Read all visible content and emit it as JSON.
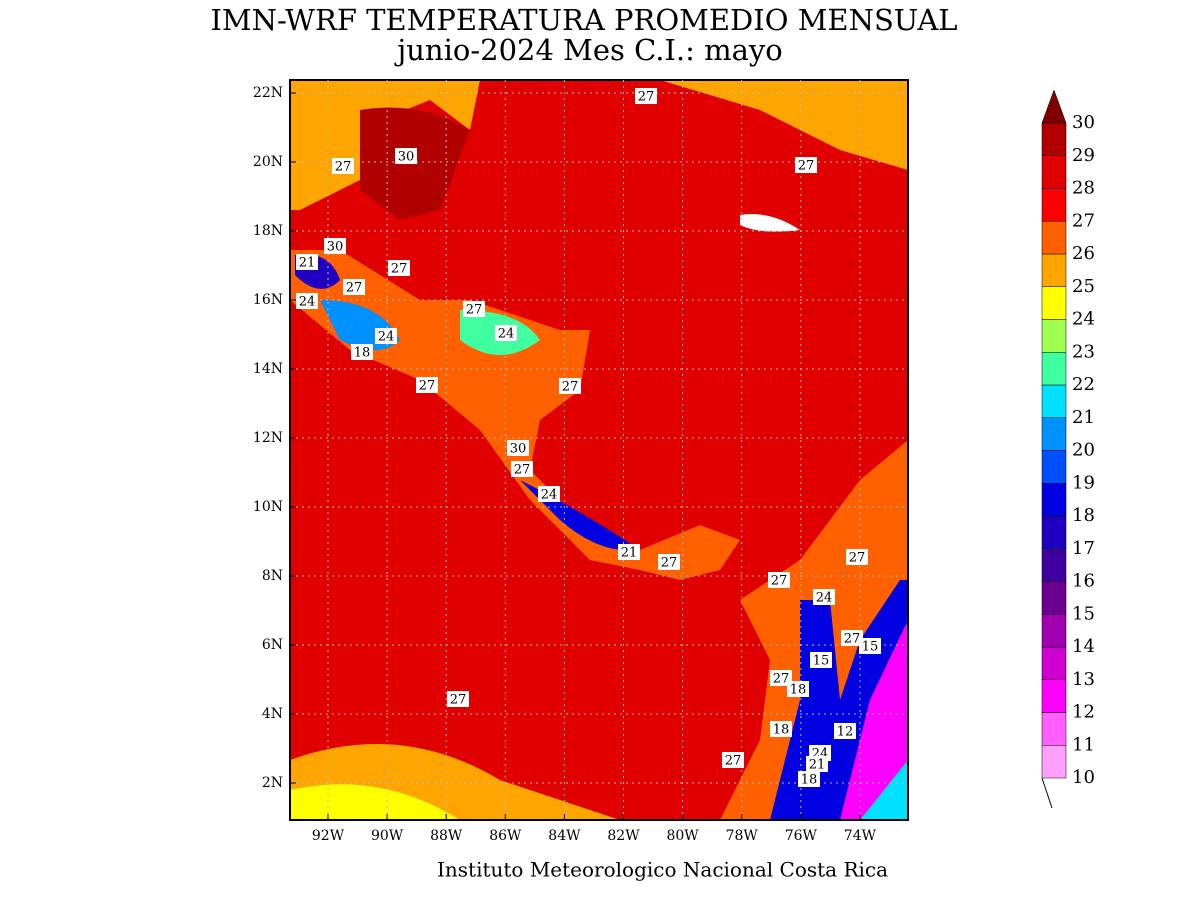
{
  "header": {
    "title": "IMN-WRF  TEMPERATURA PROMEDIO MENSUAL",
    "subtitle": "junio-2024 Mes C.I.: mayo"
  },
  "map": {
    "lat_labels": [
      "22N",
      "20N",
      "18N",
      "16N",
      "14N",
      "12N",
      "10N",
      "8N",
      "6N",
      "4N",
      "2N"
    ],
    "lon_labels": [
      "92W",
      "90W",
      "88W",
      "86W",
      "84W",
      "82W",
      "80W",
      "78W",
      "76W",
      "74W"
    ],
    "contour_labels": [
      27,
      30,
      27,
      27,
      30,
      27,
      21,
      27,
      24,
      27,
      24,
      24,
      18,
      27,
      27,
      30,
      27,
      24,
      21,
      27,
      27,
      27,
      24,
      27,
      15,
      15,
      27,
      18,
      27,
      18,
      12,
      24,
      27,
      21,
      18
    ]
  },
  "colorbar": {
    "levels": [
      10,
      11,
      12,
      13,
      14,
      15,
      16,
      17,
      18,
      19,
      20,
      21,
      22,
      23,
      24,
      25,
      26,
      27,
      28,
      29,
      30
    ],
    "colors": [
      "#ffa0ff",
      "#ff60ff",
      "#ff00ff",
      "#d000d0",
      "#a000b0",
      "#6a0090",
      "#4000a0",
      "#2000c0",
      "#0000e0",
      "#0050ff",
      "#0090ff",
      "#00e0ff",
      "#40ffa0",
      "#a0ff50",
      "#ffff00",
      "#ffa500",
      "#ff6000",
      "#ff0000",
      "#e00000",
      "#b00000"
    ],
    "over_color": "#800000"
  },
  "footer": {
    "credit": "Instituto Meteorologico Nacional Costa Rica"
  }
}
